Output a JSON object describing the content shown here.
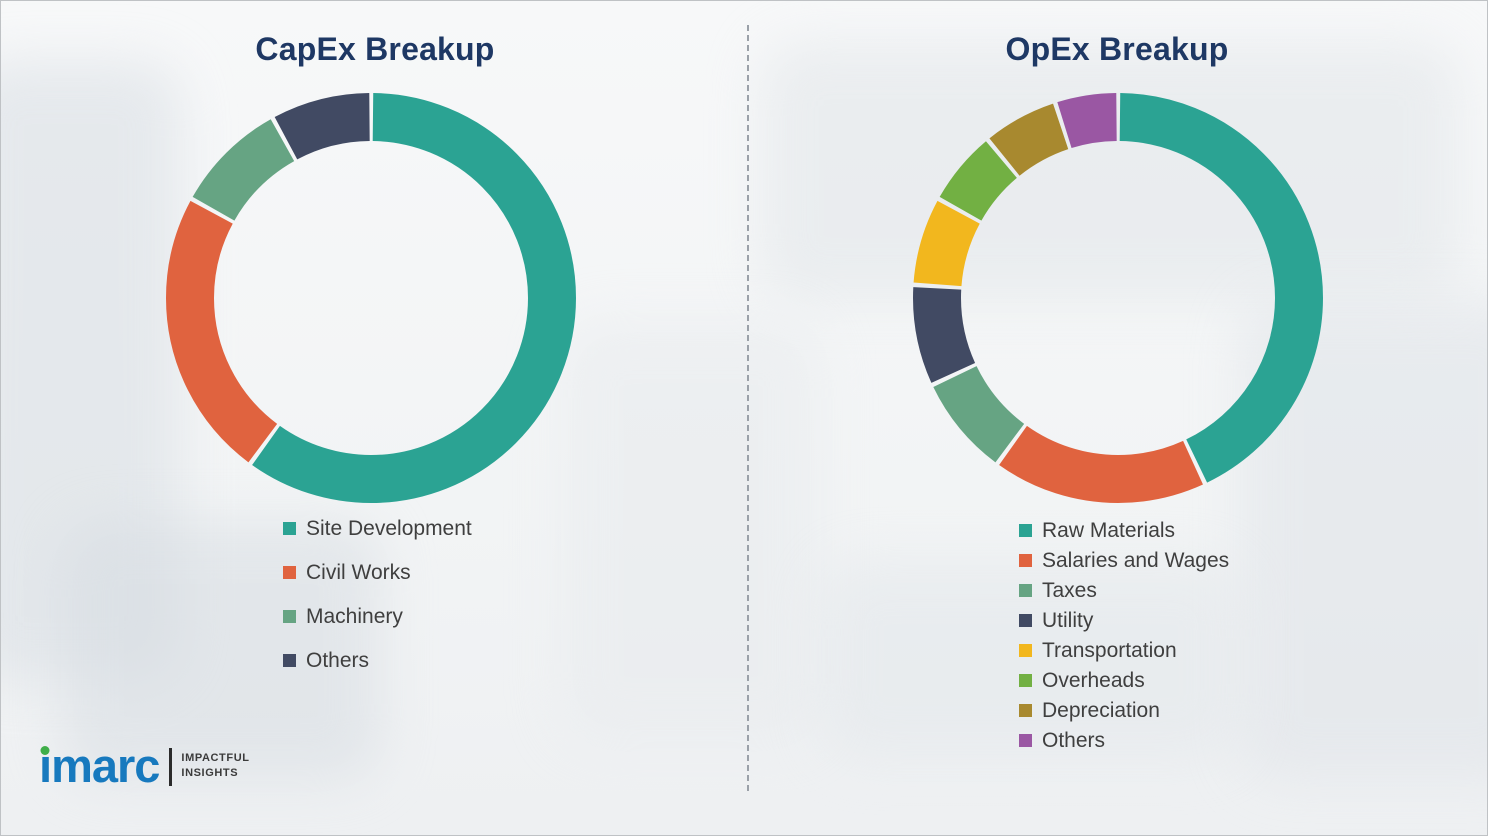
{
  "chart_data": [
    {
      "type": "pie",
      "donut": true,
      "inner_radius_ratio": 0.77,
      "title": "CapEx Breakup",
      "labels": [
        "Site Development",
        "Civil Works",
        "Machinery",
        "Others"
      ],
      "values": [
        60,
        23,
        9,
        8
      ],
      "colors": [
        "#2ba393",
        "#e0633f",
        "#66a483",
        "#414a63"
      ],
      "start_angle_deg": 0,
      "direction": "clockwise",
      "legend_position": "bottom-left"
    },
    {
      "type": "pie",
      "donut": true,
      "inner_radius_ratio": 0.77,
      "title": "OpEx Breakup",
      "labels": [
        "Raw Materials",
        "Salaries and Wages",
        "Taxes",
        "Utility",
        "Transportation",
        "Overheads",
        "Depreciation",
        "Others"
      ],
      "values": [
        43,
        17,
        8,
        8,
        7,
        6,
        6,
        5
      ],
      "colors": [
        "#2ba393",
        "#e0633f",
        "#66a483",
        "#414a63",
        "#f2b71e",
        "#72b043",
        "#a8892f",
        "#9a57a3"
      ],
      "start_angle_deg": 0,
      "direction": "clockwise",
      "legend_position": "bottom-left"
    }
  ],
  "logo": {
    "brand": "imarc",
    "tagline": [
      "IMPACTFUL",
      "INSIGHTS"
    ]
  },
  "style": {
    "title_color": "#1e3864",
    "legend_text_color": "#3f3f3f",
    "brand_blue": "#1779be",
    "brand_dot_green": "#3fae49"
  }
}
